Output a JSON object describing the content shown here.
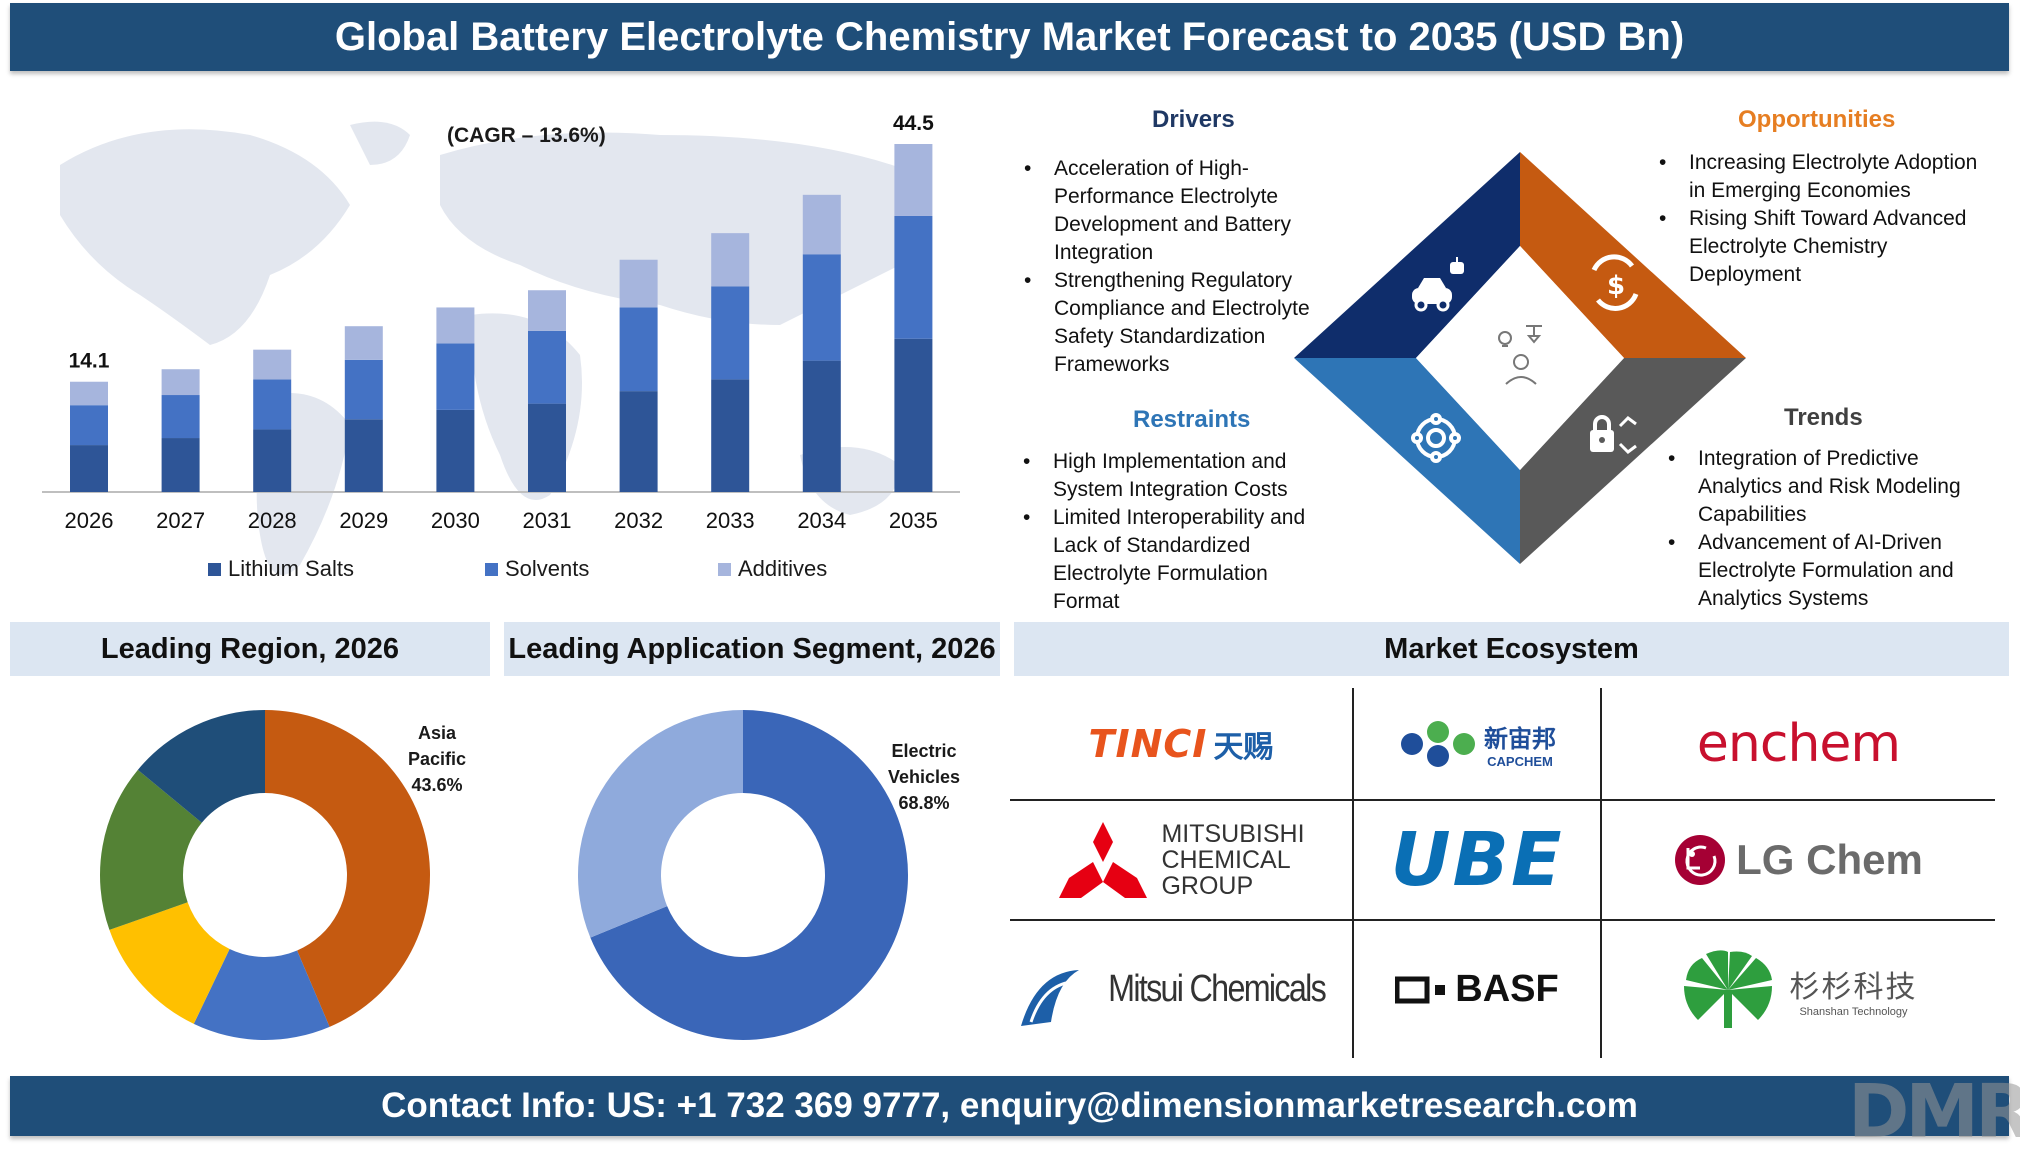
{
  "header": {
    "title": "Global Battery Electrolyte Chemistry Market Forecast to 2035 (USD Bn)"
  },
  "footer": {
    "contact": "Contact Info: US: +1 732 369 9777, enquiry@dimensionmarketresearch.com"
  },
  "chart_data": [
    {
      "type": "bar",
      "stacked": true,
      "annotation": "(CAGR – 13.6%)",
      "categories": [
        "2026",
        "2027",
        "2028",
        "2029",
        "2030",
        "2031",
        "2032",
        "2033",
        "2034",
        "2035"
      ],
      "series": [
        {
          "name": "Lithium Salts",
          "color": "#2e5597",
          "values": [
            6.0,
            6.9,
            8.0,
            9.3,
            10.5,
            11.3,
            12.9,
            14.4,
            16.8,
            19.6
          ]
        },
        {
          "name": "Solvents",
          "color": "#4472c4",
          "values": [
            5.1,
            5.5,
            6.4,
            7.6,
            8.5,
            9.3,
            10.7,
            11.9,
            13.6,
            15.7
          ]
        },
        {
          "name": "Additives",
          "color": "#a6b5dd",
          "values": [
            3.0,
            3.3,
            3.8,
            4.3,
            4.6,
            5.2,
            6.1,
            6.8,
            7.6,
            9.2
          ]
        }
      ],
      "data_labels": {
        "2026": "14.1",
        "2035": "44.5"
      },
      "legend_position": "bottom",
      "grid": false
    },
    {
      "type": "pie",
      "donut": true,
      "title": "Leading Region, 2026",
      "slices": [
        {
          "label": "Asia Pacific",
          "value": 43.6,
          "color": "#c55a11"
        },
        {
          "value": 13.5,
          "color": "#4472c4"
        },
        {
          "value": 12.5,
          "color": "#ffc000"
        },
        {
          "value": 16.4,
          "color": "#548235"
        },
        {
          "value": 14.0,
          "color": "#1f4e79"
        }
      ],
      "callout": {
        "label": "Asia Pacific",
        "value": "43.6%"
      }
    },
    {
      "type": "pie",
      "donut": true,
      "title": "Leading Application Segment, 2026",
      "slices": [
        {
          "label": "Electric Vehicles",
          "value": 68.8,
          "color": "#3a66b8"
        },
        {
          "value": 31.2,
          "color": "#8faadc"
        }
      ],
      "callout": {
        "label": "Electric Vehicles",
        "value": "68.8%"
      }
    }
  ],
  "drivers": {
    "title": "Drivers",
    "items": [
      "Acceleration of High-Performance Electrolyte Development and Battery Integration",
      "Strengthening Regulatory Compliance and Electrolyte Safety Standardization Frameworks"
    ]
  },
  "restraints": {
    "title": "Restraints",
    "items": [
      "High Implementation and System Integration Costs",
      "Limited Interoperability and Lack of Standardized Electrolyte Formulation Format"
    ]
  },
  "opportunities": {
    "title": "Opportunities",
    "items": [
      "Increasing Electrolyte Adoption in Emerging Economies",
      "Rising Shift Toward Advanced Electrolyte Chemistry Deployment"
    ]
  },
  "trends": {
    "title": "Trends",
    "items": [
      "Integration of Predictive Analytics and Risk Modeling Capabilities",
      "Advancement of AI-Driven Electrolyte Formulation and Analytics Systems"
    ]
  },
  "diamond": {
    "colors": {
      "drivers": "#0f2d6b",
      "opportunities": "#c55a11",
      "restraints": "#2e75b6",
      "trends": "#595959"
    },
    "icons": [
      "car-robot-icon",
      "dollar-cycle-icon",
      "gear-network-icon",
      "lock-trend-icon",
      "person-idea-icon"
    ]
  },
  "ecosystem": {
    "title": "Market Ecosystem",
    "logos": [
      {
        "name": "TINCI",
        "text": "TINCI",
        "sub": "天赐"
      },
      {
        "name": "CAPCHEM",
        "text": "新宙邦",
        "sub": "CAPCHEM"
      },
      {
        "name": "enchem",
        "text": "enchem"
      },
      {
        "name": "Mitsubishi Chemical Group",
        "lines": [
          "MITSUBISHI",
          "CHEMICAL",
          "GROUP"
        ]
      },
      {
        "name": "UBE",
        "text": "UBE"
      },
      {
        "name": "LG Chem",
        "text": "LG Chem"
      },
      {
        "name": "Mitsui Chemicals",
        "text": "Mitsui Chemicals"
      },
      {
        "name": "BASF",
        "text": "BASF"
      },
      {
        "name": "Shanshan Technology",
        "text": "杉杉科技",
        "sub": "Shanshan Technology"
      }
    ]
  },
  "watermark": "DMR"
}
